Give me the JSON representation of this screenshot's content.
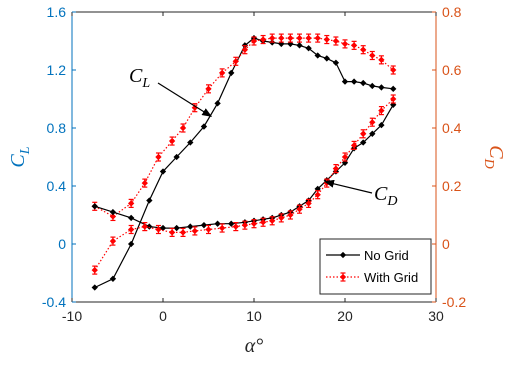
{
  "chart_data": {
    "type": "line",
    "xlabel": "α°",
    "ylabel_left": {
      "main": "C",
      "sub": "L"
    },
    "ylabel_right": {
      "main": "C",
      "sub": "D"
    },
    "xlim": [
      -10,
      30
    ],
    "ylim_left": [
      -0.4,
      1.6
    ],
    "ylim_right": [
      -0.2,
      0.8
    ],
    "xticks": [
      -10,
      0,
      10,
      20,
      30
    ],
    "xtick_labels": [
      "-10",
      "0",
      "10",
      "20",
      "30"
    ],
    "yticks_left": [
      -0.4,
      0,
      0.4,
      0.8,
      1.2,
      1.6
    ],
    "ytick_labels_left": [
      "-0.4",
      "0",
      "0.4",
      "0.8",
      "1.2",
      "1.6"
    ],
    "yticks_right": [
      -0.2,
      0,
      0.2,
      0.4,
      0.6,
      0.8
    ],
    "ytick_labels_right": [
      "-0.2",
      "0",
      "0.2",
      "0.4",
      "0.6",
      "0.8"
    ],
    "grid": false,
    "legend_position": "bottom-right",
    "colors": {
      "left_axis": "#0072BD",
      "right_axis": "#D95319",
      "no_grid": "#000000",
      "with_grid": "#FF0000"
    },
    "series": [
      {
        "name": "No Grid",
        "quantity": "CL",
        "axis": "left",
        "style": "solid-diamond",
        "x": [
          -7.5,
          -5.5,
          -3.5,
          -1.5,
          0,
          1.5,
          3,
          4.5,
          6,
          7.5,
          9,
          10,
          11,
          12,
          13,
          14,
          15,
          16,
          17,
          18,
          19,
          20,
          21,
          22,
          23,
          24,
          25.3
        ],
        "y": [
          -0.3,
          -0.24,
          0.0,
          0.3,
          0.5,
          0.6,
          0.7,
          0.81,
          0.97,
          1.18,
          1.37,
          1.42,
          1.4,
          1.39,
          1.38,
          1.38,
          1.37,
          1.35,
          1.3,
          1.28,
          1.25,
          1.12,
          1.12,
          1.11,
          1.09,
          1.08,
          1.07
        ]
      },
      {
        "name": "With Grid",
        "quantity": "CL",
        "axis": "left",
        "style": "dotted-diamond-errorbar",
        "x": [
          -7.5,
          -5.5,
          -3.5,
          -2,
          -0.5,
          1,
          2.2,
          3.5,
          5,
          6.5,
          8,
          9,
          10,
          11,
          12,
          13,
          14,
          15,
          16,
          17,
          18,
          19,
          20,
          21,
          22,
          23,
          24,
          25.3
        ],
        "y": [
          0.26,
          0.19,
          0.28,
          0.42,
          0.6,
          0.71,
          0.8,
          0.94,
          1.07,
          1.18,
          1.26,
          1.34,
          1.4,
          1.41,
          1.42,
          1.42,
          1.42,
          1.42,
          1.42,
          1.42,
          1.41,
          1.4,
          1.38,
          1.37,
          1.34,
          1.3,
          1.27,
          1.2
        ]
      },
      {
        "name": "No Grid",
        "quantity": "CD",
        "axis": "right",
        "style": "solid-diamond",
        "x": [
          -7.5,
          -5.5,
          -3.5,
          -1.5,
          0,
          1.5,
          3,
          4.5,
          6,
          7.5,
          9,
          10,
          11,
          12,
          13,
          14,
          15,
          16,
          17,
          18,
          19,
          20,
          21,
          22,
          23,
          24,
          25.3
        ],
        "y": [
          0.13,
          0.11,
          0.09,
          0.06,
          0.055,
          0.055,
          0.06,
          0.065,
          0.07,
          0.07,
          0.075,
          0.08,
          0.085,
          0.09,
          0.1,
          0.11,
          0.13,
          0.15,
          0.19,
          0.22,
          0.25,
          0.28,
          0.33,
          0.35,
          0.38,
          0.41,
          0.48
        ]
      },
      {
        "name": "With Grid",
        "quantity": "CD",
        "axis": "right",
        "style": "dotted-diamond-errorbar",
        "x": [
          -7.5,
          -5.5,
          -3.5,
          -2,
          -0.5,
          1,
          2.2,
          3.5,
          5,
          6.5,
          8,
          9,
          10,
          11,
          12,
          13,
          14,
          15,
          16,
          17,
          18,
          19,
          20,
          21,
          22,
          23,
          24,
          25.3
        ],
        "y": [
          -0.09,
          0.01,
          0.05,
          0.06,
          0.05,
          0.04,
          0.04,
          0.045,
          0.05,
          0.055,
          0.06,
          0.065,
          0.07,
          0.075,
          0.08,
          0.09,
          0.1,
          0.12,
          0.14,
          0.17,
          0.21,
          0.26,
          0.3,
          0.34,
          0.38,
          0.42,
          0.46,
          0.5
        ]
      }
    ],
    "annotations": [
      {
        "main": "C",
        "sub": "L",
        "points_to": [
          5.3,
          0.88
        ],
        "axis": "left"
      },
      {
        "main": "C",
        "sub": "D",
        "points_to": [
          17.8,
          0.215
        ],
        "axis": "right"
      }
    ],
    "legend": [
      {
        "label": "No Grid",
        "style": "solid-diamond"
      },
      {
        "label": "With Grid",
        "style": "dotted-diamond-errorbar"
      }
    ]
  }
}
